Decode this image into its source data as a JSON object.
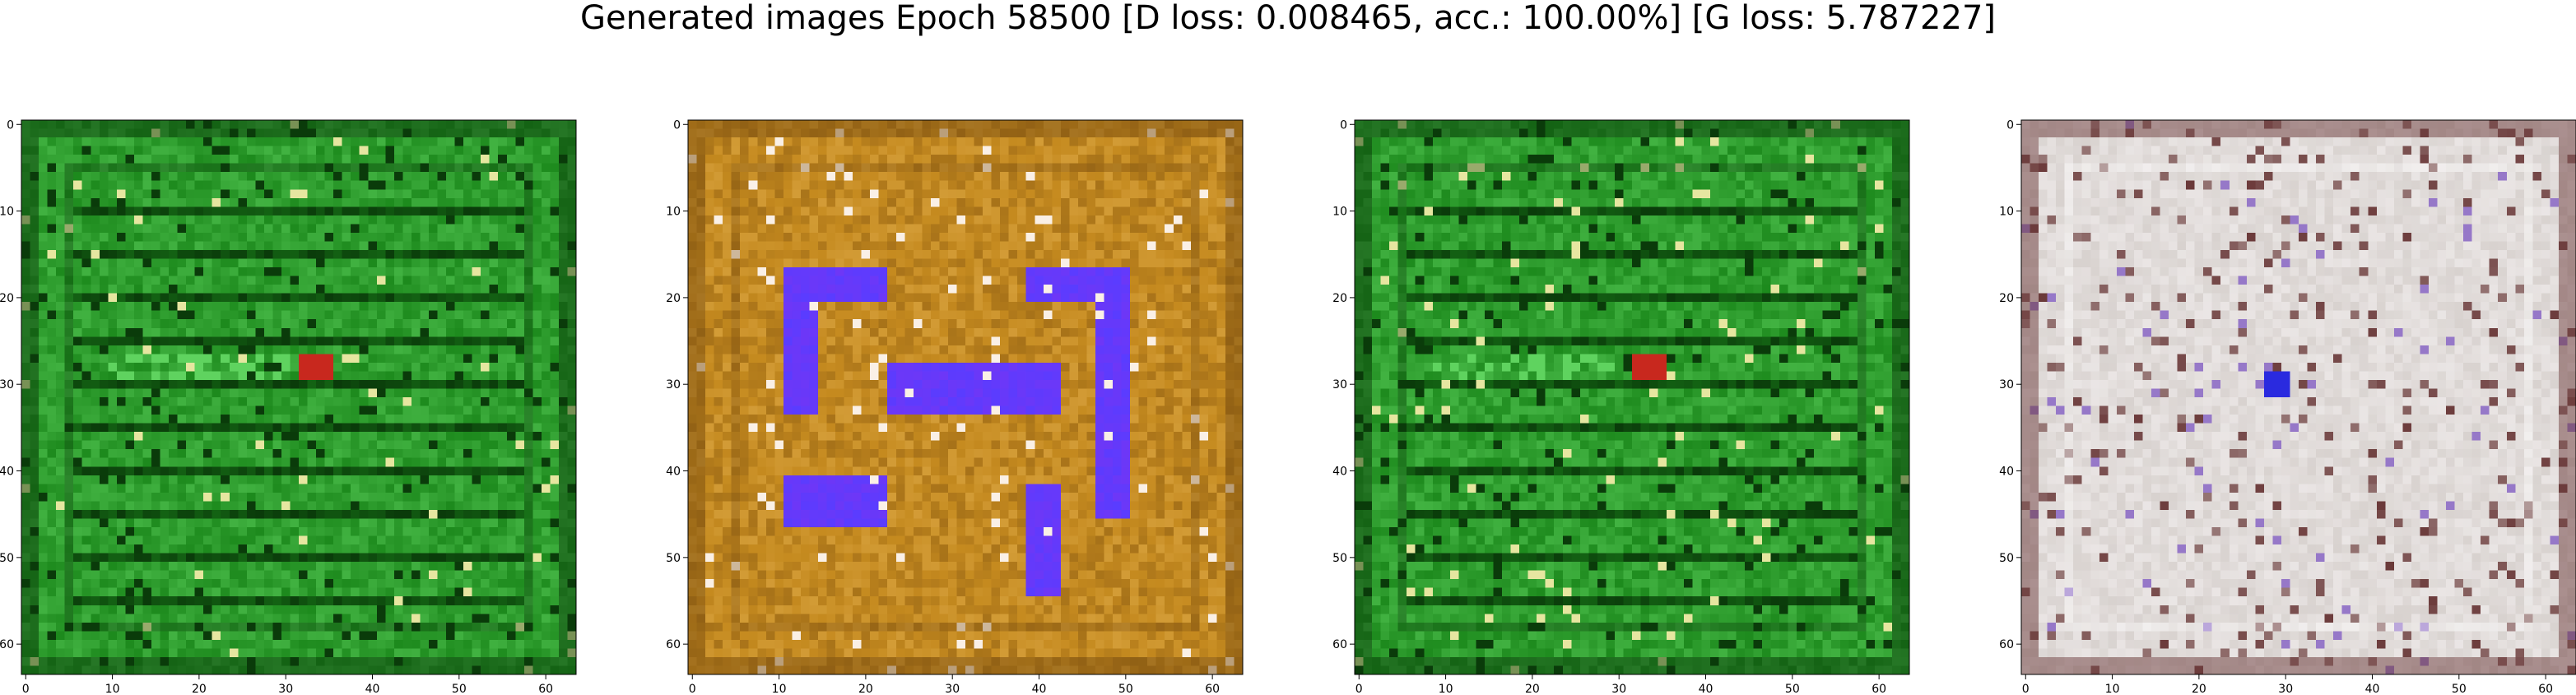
{
  "figure": {
    "title": "Generated images Epoch 58500 [D loss: 0.008465, acc.: 100.00%] [G loss: 5.787227]"
  },
  "chart_data": [
    {
      "type": "heatmap",
      "title": "",
      "xlabel": "",
      "ylabel": "",
      "xlim": [
        0,
        64
      ],
      "ylim": [
        64,
        0
      ],
      "xticks": [
        "0",
        "10",
        "20",
        "30",
        "40",
        "50",
        "60"
      ],
      "yticks": [
        "0",
        "10",
        "20",
        "30",
        "40",
        "50",
        "60"
      ],
      "image": {
        "image_theme": "green-maze",
        "colors": {
          "base": "#1d8a1d",
          "light": "#5fd35f",
          "dark": "#0a3b0a",
          "accent": "#c8281e"
        }
      }
    },
    {
      "type": "heatmap",
      "title": "",
      "xlabel": "",
      "ylabel": "",
      "xlim": [
        0,
        64
      ],
      "ylim": [
        64,
        0
      ],
      "xticks": [
        "0",
        "10",
        "20",
        "30",
        "40",
        "50",
        "60"
      ],
      "yticks": [
        "0",
        "10",
        "20",
        "30",
        "40",
        "50",
        "60"
      ],
      "image": {
        "image_theme": "orange-blue",
        "colors": {
          "base": "#c58a1f",
          "light": "#e8b75a",
          "dark": "#7a4e10",
          "accent": "#5a3cff"
        }
      }
    },
    {
      "type": "heatmap",
      "title": "",
      "xlabel": "",
      "ylabel": "",
      "xlim": [
        0,
        64
      ],
      "ylim": [
        64,
        0
      ],
      "xticks": [
        "0",
        "10",
        "20",
        "30",
        "40",
        "50",
        "60"
      ],
      "yticks": [
        "0",
        "10",
        "20",
        "30",
        "40",
        "50",
        "60"
      ],
      "image": {
        "image_theme": "green-maze",
        "colors": {
          "base": "#1d8a1d",
          "light": "#5fd35f",
          "dark": "#0a3b0a",
          "accent": "#c8281e"
        }
      }
    },
    {
      "type": "heatmap",
      "title": "",
      "xlabel": "",
      "ylabel": "",
      "xlim": [
        0,
        64
      ],
      "ylim": [
        64,
        0
      ],
      "xticks": [
        "0",
        "10",
        "20",
        "30",
        "40",
        "50",
        "60"
      ],
      "yticks": [
        "0",
        "10",
        "20",
        "30",
        "40",
        "50",
        "60"
      ],
      "image": {
        "image_theme": "pale-noise",
        "colors": {
          "base": "#d8d2cf",
          "light": "#f2eeee",
          "dark": "#6b3a3a",
          "accent": "#2a2adf"
        }
      }
    }
  ]
}
